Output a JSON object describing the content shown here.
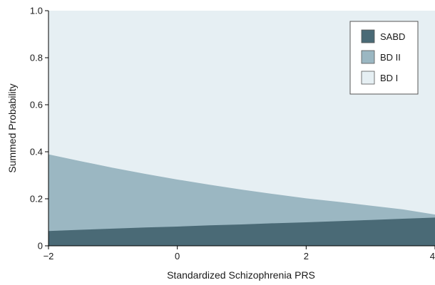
{
  "chart_data": {
    "type": "area",
    "stacked": true,
    "xlabel": "Standardized Schizophrenia PRS",
    "ylabel": "Summed Probability",
    "xlim": [
      -2,
      4
    ],
    "ylim": [
      0,
      1.0
    ],
    "xticks": [
      -2,
      0,
      2,
      4
    ],
    "yticks": [
      0,
      0.2,
      0.4,
      0.6,
      0.8,
      1.0
    ],
    "xtick_labels": [
      "−2",
      "0",
      "2",
      "4"
    ],
    "ytick_labels": [
      "0",
      "0.2",
      "0.4",
      "0.6",
      "0.8",
      "1.0"
    ],
    "legend_position": "top-right",
    "x": [
      -2,
      -1.5,
      -1,
      -0.5,
      0,
      0.5,
      1,
      1.5,
      2,
      2.5,
      3,
      3.5,
      4
    ],
    "series": [
      {
        "name": "SABD",
        "color": "#4a6a76",
        "cumulative": [
          0.063,
          0.068,
          0.073,
          0.078,
          0.082,
          0.087,
          0.091,
          0.096,
          0.1,
          0.105,
          0.11,
          0.115,
          0.12
        ]
      },
      {
        "name": "BD II",
        "color": "#9bb7c2",
        "cumulative": [
          0.389,
          0.36,
          0.332,
          0.306,
          0.282,
          0.26,
          0.239,
          0.22,
          0.202,
          0.187,
          0.171,
          0.155,
          0.133
        ]
      },
      {
        "name": "BD I",
        "color": "#e6eff3",
        "cumulative": [
          1.0,
          1.0,
          1.0,
          1.0,
          1.0,
          1.0,
          1.0,
          1.0,
          1.0,
          1.0,
          1.0,
          1.0,
          1.0
        ]
      }
    ]
  }
}
